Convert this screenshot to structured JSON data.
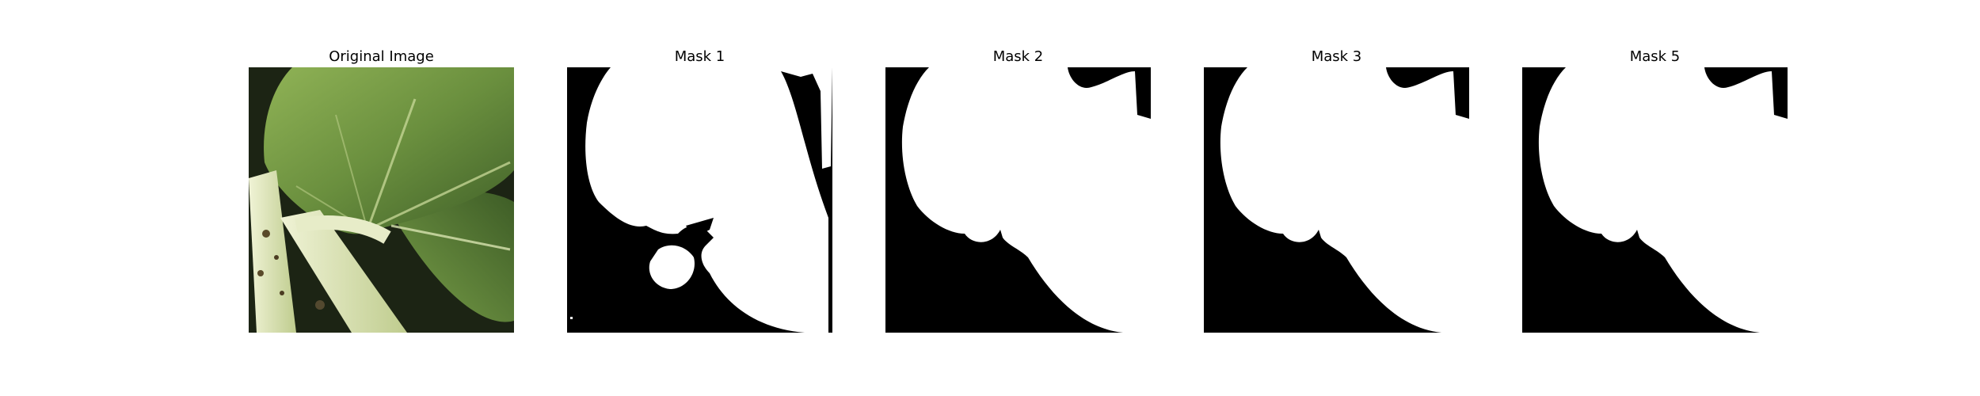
{
  "figure": {
    "panels": [
      {
        "title": "Original Image",
        "kind": "photo"
      },
      {
        "title": "Mask 1",
        "kind": "mask",
        "variant": "mask1"
      },
      {
        "title": "Mask 2",
        "kind": "mask",
        "variant": "full"
      },
      {
        "title": "Mask 3",
        "kind": "mask",
        "variant": "full"
      },
      {
        "title": "Mask 5",
        "kind": "mask",
        "variant": "full"
      }
    ],
    "colors": {
      "mask_foreground": "#ffffff",
      "mask_background": "#000000",
      "leaf_dark": "#4e7232",
      "leaf_light": "#8fb255",
      "stem": "#d9e3b2"
    }
  }
}
